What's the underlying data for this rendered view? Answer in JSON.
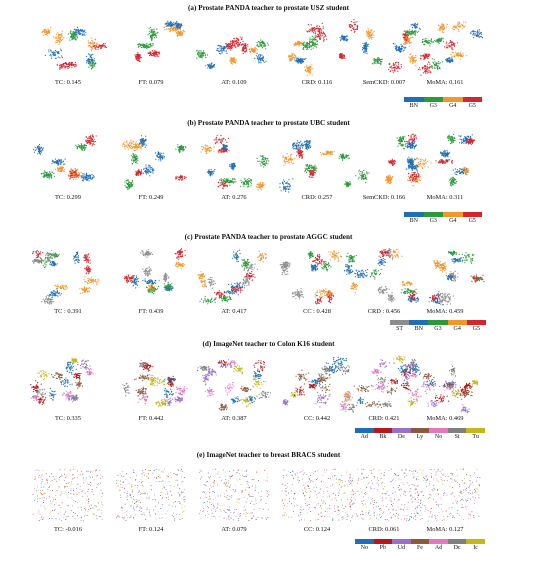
{
  "sections": [
    {
      "title": "(a) Prostate PANDA teacher to prostate USZ student",
      "panels": [
        "TC: 0.145",
        "FT: 0.079",
        "AT: 0.109",
        "CRD: 0.116",
        "SemCKD: 0.007",
        "MoMA: 0.161"
      ],
      "legend": [
        "BN",
        "G3",
        "G4",
        "G5"
      ],
      "legend_colors": [
        "#1f6fb8",
        "#2a9a3a",
        "#f3962b",
        "#d6262d"
      ]
    },
    {
      "title": "(b) Prostate PANDA teacher to prostate UBC student",
      "panels": [
        "TC: 0.299",
        "FT: 0.249",
        "AT: 0.276",
        "CRD: 0.257",
        "SemCKD: 0.166",
        "MoMA: 0.311"
      ],
      "legend": [
        "BN",
        "G3",
        "G4",
        "G5"
      ],
      "legend_colors": [
        "#1f6fb8",
        "#2a9a3a",
        "#f3962b",
        "#d6262d"
      ]
    },
    {
      "title": "(c) Prostate PANDA teacher to prostate AGGC student",
      "panels": [
        "TC : 0.391",
        "FT: 0.439",
        "AT: 0.417",
        "CC : 0.428",
        "CRD : 0.456",
        "MoMA: 0.459"
      ],
      "legend": [
        "ST",
        "BN",
        "G3",
        "G4",
        "G5"
      ],
      "legend_colors": [
        "#8c8c8c",
        "#1f6fb8",
        "#2a9a3a",
        "#f3962b",
        "#d6262d"
      ]
    },
    {
      "title": "(d) ImageNet teacher to Colon K16 student",
      "panels": [
        "TC: 0.335",
        "FT: 0.442",
        "AT: 0.387",
        "CC: 0.442",
        "CRD: 0.421",
        "MoMA: 0.469"
      ],
      "legend": [
        "Ad",
        "Bk",
        "De",
        "Ly",
        "No",
        "St",
        "Tu"
      ],
      "legend_colors": [
        "#1f6fb8",
        "#b31b1b",
        "#9a6fc9",
        "#8b5a3c",
        "#e377c2",
        "#7f7f7f",
        "#c2b81a"
      ]
    },
    {
      "title": "(e) ImageNet teacher to breast BRACS student",
      "panels": [
        "TC: -0.016",
        "FT: 0.124",
        "AT: 0.079",
        "CC: 0.124",
        "CRD: 0.061",
        "MoMA: 0.127"
      ],
      "legend": [
        "No",
        "Pb",
        "Ud",
        "Fe",
        "Ad",
        "Dc",
        "Ic"
      ],
      "legend_colors": [
        "#1f6fb8",
        "#b31b1b",
        "#9a6fc9",
        "#8b5a3c",
        "#e377c2",
        "#7f7f7f",
        "#c2b81a"
      ]
    }
  ]
}
